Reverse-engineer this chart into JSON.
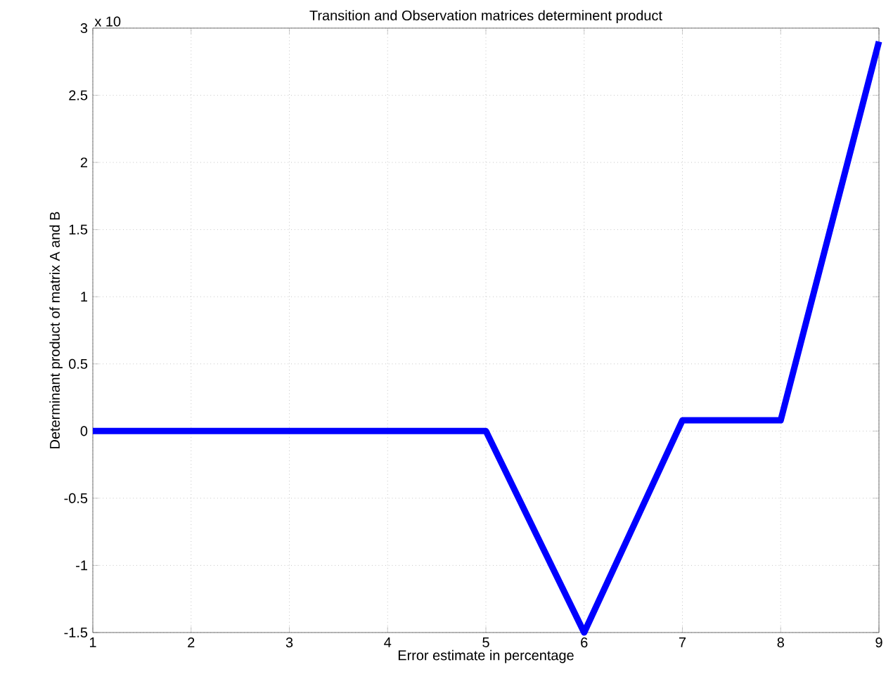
{
  "chart_data": {
    "type": "line",
    "title": "Transition and Observation matrices determinent product",
    "xlabel": "Error estimate in percentage",
    "ylabel": "Determinant product of matrix A and B",
    "annotations": [
      "x 10"
    ],
    "x": [
      1,
      2,
      3,
      4,
      5,
      6,
      7,
      8,
      9
    ],
    "series": [
      {
        "color": "#0000ff",
        "values": [
          0,
          0,
          0,
          0,
          0,
          -1.5,
          0.08,
          0.08,
          2.9
        ]
      }
    ],
    "xlim": [
      1,
      9
    ],
    "ylim": [
      -1.5,
      3
    ],
    "xticks": [
      1,
      2,
      3,
      4,
      5,
      6,
      7,
      8,
      9
    ],
    "yticks": [
      -1.5,
      -1,
      -0.5,
      0,
      0.5,
      1,
      1.5,
      2,
      2.5,
      3
    ],
    "grid": true,
    "marker": "none",
    "line_style": "solid"
  }
}
